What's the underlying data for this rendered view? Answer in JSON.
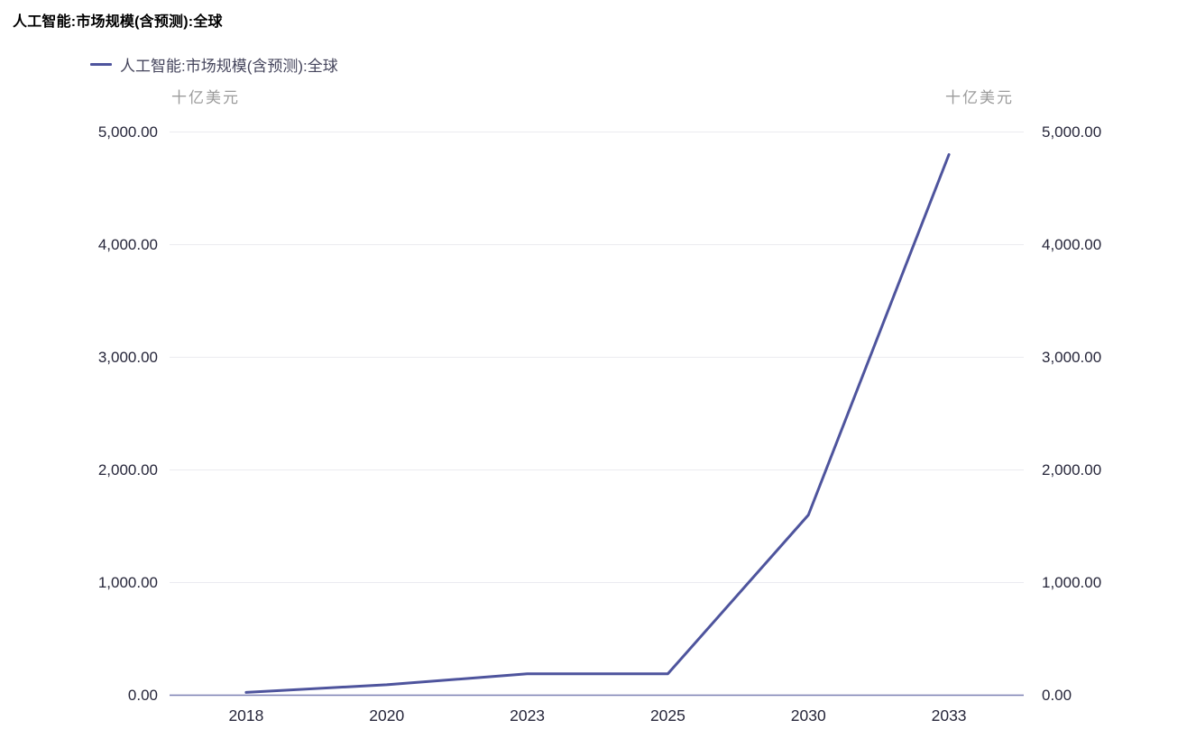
{
  "header": {
    "title": "人工智能:市场规模(含预测):全球"
  },
  "legend": {
    "label": "人工智能:市场规模(含预测):全球"
  },
  "axis": {
    "unit": "十亿美元"
  },
  "chart_data": {
    "type": "line",
    "title": "人工智能:市场规模(含预测):全球",
    "unit": "十亿美元",
    "categories": [
      "2018",
      "2020",
      "2023",
      "2025",
      "2030",
      "2033"
    ],
    "series": [
      {
        "name": "人工智能:市场规模(含预测):全球",
        "values": [
          25,
          93,
          190,
          190,
          1600,
          4800
        ]
      }
    ],
    "xlabel": "",
    "ylabel": "十亿美元",
    "ylim": [
      0,
      5000
    ],
    "ytick_values": [
      0,
      1000,
      2000,
      3000,
      4000,
      5000
    ],
    "ytick_labels": [
      "0.00",
      "1,000.00",
      "2,000.00",
      "3,000.00",
      "4,000.00",
      "5,000.00"
    ],
    "grid": true,
    "legend_position": "top-left",
    "dual_y_axis_labels": true,
    "colors": {
      "series_line": "#4e549d",
      "axis_zero_line": "#7a7fb2",
      "gridline": "#ebebf0",
      "tick_text": "#26263a",
      "unit_text": "#9b9b9b",
      "title_text": "#000000",
      "legend_text": "#45455c"
    }
  }
}
